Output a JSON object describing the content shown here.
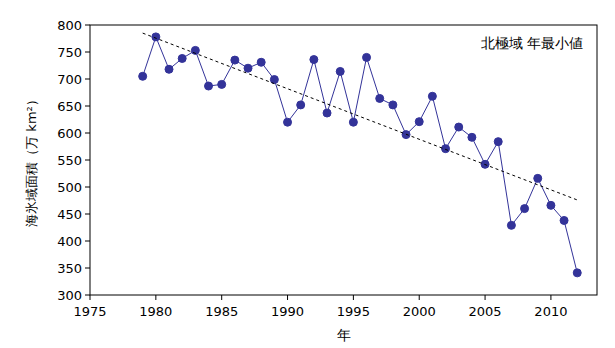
{
  "chart_data": {
    "type": "line",
    "title": "北極域 年最小値",
    "x_label": "年",
    "y_label": "海氷域面積（万 km²）",
    "xlim": [
      1975,
      2013.5
    ],
    "xticks": [
      1975,
      1980,
      1985,
      1990,
      1995,
      2000,
      2005,
      2010
    ],
    "ylim": [
      300,
      800
    ],
    "yticks": [
      300,
      350,
      400,
      450,
      500,
      550,
      600,
      650,
      700,
      750,
      800
    ],
    "grid": false,
    "series": [
      {
        "color": "#333399",
        "marker": "circle",
        "line_style": "solid",
        "x": [
          1979,
          1980,
          1981,
          1982,
          1983,
          1984,
          1985,
          1986,
          1987,
          1988,
          1989,
          1990,
          1991,
          1992,
          1993,
          1994,
          1995,
          1996,
          1997,
          1998,
          1999,
          2000,
          2001,
          2002,
          2003,
          2004,
          2005,
          2006,
          2007,
          2008,
          2009,
          2010,
          2011,
          2012
        ],
        "values": [
          705,
          778,
          718,
          738,
          753,
          687,
          690,
          735,
          720,
          731,
          699,
          620,
          652,
          736,
          637,
          714,
          620,
          740,
          664,
          652,
          597,
          621,
          668,
          571,
          611,
          592,
          542,
          584,
          429,
          460,
          516,
          466,
          438,
          341
        ]
      },
      {
        "color": "#000000",
        "marker": "none",
        "line_style": "dashed",
        "x": [
          1979,
          2012
        ],
        "values": [
          785,
          476
        ]
      }
    ]
  }
}
